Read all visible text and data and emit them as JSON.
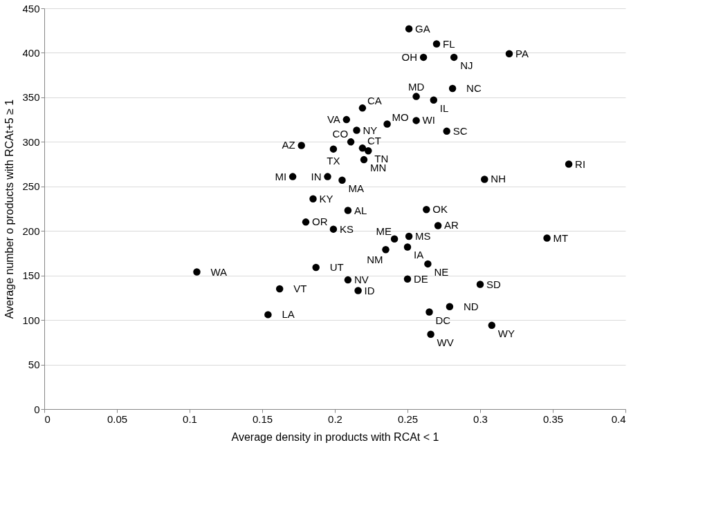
{
  "chart_data": {
    "type": "scatter",
    "xlabel": "Average density in products with RCAt < 1",
    "ylabel": "Average number o products with RCAt+5 ≥ 1",
    "xlim": [
      0,
      0.4
    ],
    "xticks": [
      0,
      0.05,
      0.1,
      0.15,
      0.2,
      0.25,
      0.3,
      0.35,
      0.4
    ],
    "ylim": [
      0,
      450
    ],
    "yticks": [
      0,
      50,
      100,
      150,
      200,
      250,
      300,
      350,
      400,
      450
    ],
    "grid": "y",
    "marker": "circle",
    "legend": false,
    "x": [
      0.251,
      0.27,
      0.261,
      0.282,
      0.32,
      0.256,
      0.281,
      0.268,
      0.219,
      0.208,
      0.215,
      0.236,
      0.256,
      0.277,
      0.211,
      0.177,
      0.199,
      0.219,
      0.223,
      0.22,
      0.361,
      0.171,
      0.195,
      0.205,
      0.303,
      0.185,
      0.209,
      0.263,
      0.18,
      0.199,
      0.271,
      0.241,
      0.251,
      0.346,
      0.25,
      0.235,
      0.264,
      0.187,
      0.105,
      0.209,
      0.25,
      0.3,
      0.162,
      0.216,
      0.279,
      0.265,
      0.154,
      0.308,
      0.266
    ],
    "series": [
      {
        "color": "#000000",
        "values": [
          427,
          410,
          395,
          395,
          399,
          351,
          360,
          347,
          338,
          325,
          313,
          320,
          324,
          312,
          300,
          296,
          292,
          293,
          290,
          280,
          275,
          261,
          261,
          257,
          258,
          236,
          223,
          224,
          210,
          202,
          206,
          191,
          194,
          192,
          182,
          179,
          163,
          159,
          154,
          145,
          146,
          140,
          135,
          133,
          115,
          109,
          106,
          94,
          84
        ]
      }
    ],
    "annotations": [
      {
        "text": "GA",
        "x": 0.251,
        "y": 427
      },
      {
        "text": "FL",
        "x": 0.27,
        "y": 410
      },
      {
        "text": "OH",
        "x": 0.261,
        "y": 395
      },
      {
        "text": "NJ",
        "x": 0.282,
        "y": 395
      },
      {
        "text": "PA",
        "x": 0.32,
        "y": 399
      },
      {
        "text": "MD",
        "x": 0.256,
        "y": 351
      },
      {
        "text": "NC",
        "x": 0.281,
        "y": 360
      },
      {
        "text": "IL",
        "x": 0.268,
        "y": 347
      },
      {
        "text": "CA",
        "x": 0.219,
        "y": 338
      },
      {
        "text": "VA",
        "x": 0.208,
        "y": 325
      },
      {
        "text": "NY",
        "x": 0.215,
        "y": 313
      },
      {
        "text": "MO",
        "x": 0.236,
        "y": 320
      },
      {
        "text": "WI",
        "x": 0.256,
        "y": 324
      },
      {
        "text": "SC",
        "x": 0.277,
        "y": 312
      },
      {
        "text": "CO",
        "x": 0.211,
        "y": 300
      },
      {
        "text": "AZ",
        "x": 0.177,
        "y": 296
      },
      {
        "text": "TX",
        "x": 0.199,
        "y": 292
      },
      {
        "text": "CT",
        "x": 0.219,
        "y": 293
      },
      {
        "text": "TN",
        "x": 0.223,
        "y": 290
      },
      {
        "text": "MN",
        "x": 0.22,
        "y": 280
      },
      {
        "text": "RI",
        "x": 0.361,
        "y": 275
      },
      {
        "text": "MI",
        "x": 0.171,
        "y": 261
      },
      {
        "text": "IN",
        "x": 0.195,
        "y": 261
      },
      {
        "text": "MA",
        "x": 0.205,
        "y": 257
      },
      {
        "text": "NH",
        "x": 0.303,
        "y": 258
      },
      {
        "text": "KY",
        "x": 0.185,
        "y": 236
      },
      {
        "text": "AL",
        "x": 0.209,
        "y": 223
      },
      {
        "text": "OK",
        "x": 0.263,
        "y": 224
      },
      {
        "text": "OR",
        "x": 0.18,
        "y": 210
      },
      {
        "text": "KS",
        "x": 0.199,
        "y": 202
      },
      {
        "text": "AR",
        "x": 0.271,
        "y": 206
      },
      {
        "text": "ME",
        "x": 0.241,
        "y": 191
      },
      {
        "text": "MS",
        "x": 0.251,
        "y": 194
      },
      {
        "text": "MT",
        "x": 0.346,
        "y": 192
      },
      {
        "text": "IA",
        "x": 0.25,
        "y": 182
      },
      {
        "text": "NM",
        "x": 0.235,
        "y": 179
      },
      {
        "text": "NE",
        "x": 0.264,
        "y": 163
      },
      {
        "text": "UT",
        "x": 0.187,
        "y": 159
      },
      {
        "text": "WA",
        "x": 0.105,
        "y": 154
      },
      {
        "text": "NV",
        "x": 0.209,
        "y": 145
      },
      {
        "text": "DE",
        "x": 0.25,
        "y": 146
      },
      {
        "text": "SD",
        "x": 0.3,
        "y": 140
      },
      {
        "text": "VT",
        "x": 0.162,
        "y": 135
      },
      {
        "text": "ID",
        "x": 0.216,
        "y": 133
      },
      {
        "text": "ND",
        "x": 0.279,
        "y": 115
      },
      {
        "text": "DC",
        "x": 0.265,
        "y": 109
      },
      {
        "text": "LA",
        "x": 0.154,
        "y": 106
      },
      {
        "text": "WY",
        "x": 0.308,
        "y": 94
      },
      {
        "text": "WV",
        "x": 0.266,
        "y": 84
      }
    ]
  }
}
